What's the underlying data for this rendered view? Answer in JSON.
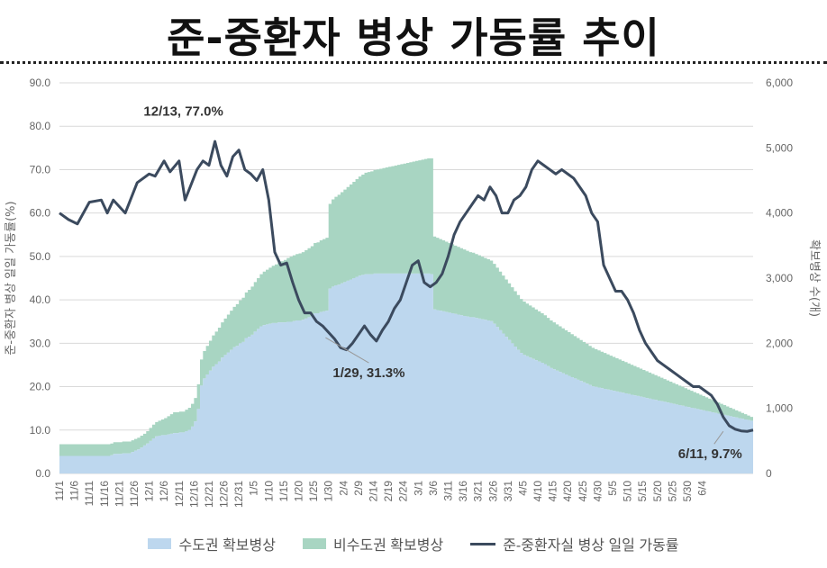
{
  "title": "준-중환자 병상 가동률 추이",
  "colors": {
    "metro": "#bdd7ee",
    "nonmetro": "#a8d5c2",
    "line": "#3b4a5e",
    "axis": "#666666",
    "grid": "#d9d9d9"
  },
  "chart_data": {
    "type": "area+line",
    "y_left": {
      "label": "준-중환자 병상 일일 가동률(%)",
      "min": 0,
      "max": 90,
      "ticks": [
        "0.0",
        "10.0",
        "20.0",
        "30.0",
        "40.0",
        "50.0",
        "60.0",
        "70.0",
        "80.0",
        "90.0"
      ]
    },
    "y_right": {
      "label": "확보병상 수(개)",
      "min": 0,
      "max": 6000,
      "ticks": [
        "0",
        "1,000",
        "2,000",
        "3,000",
        "4,000",
        "5,000",
        "6,000"
      ]
    },
    "x_ticks": [
      "11/1",
      "11/6",
      "11/11",
      "11/16",
      "11/21",
      "11/26",
      "12/1",
      "12/6",
      "12/11",
      "12/16",
      "12/21",
      "12/26",
      "12/31",
      "1/5",
      "1/10",
      "1/15",
      "1/20",
      "1/25",
      "1/30",
      "2/4",
      "2/9",
      "2/14",
      "2/19",
      "2/24",
      "3/1",
      "3/6",
      "3/11",
      "3/16",
      "3/21",
      "3/26",
      "3/31",
      "4/5",
      "4/10",
      "4/15",
      "4/20",
      "4/25",
      "4/30",
      "5/5",
      "5/10",
      "5/15",
      "5/20",
      "5/25",
      "5/30",
      "6/4"
    ],
    "series": [
      {
        "name": "수도권 확보병상",
        "type": "area",
        "unit": "beds",
        "values": [
          270,
          270,
          270,
          270,
          270,
          270,
          270,
          270,
          270,
          270,
          270,
          270,
          270,
          270,
          270,
          270,
          270,
          280,
          300,
          300,
          300,
          310,
          310,
          310,
          330,
          350,
          370,
          400,
          430,
          460,
          500,
          540,
          570,
          580,
          590,
          590,
          600,
          610,
          620,
          620,
          630,
          630,
          650,
          670,
          720,
          800,
          990,
          1350,
          1460,
          1520,
          1580,
          1640,
          1680,
          1720,
          1780,
          1820,
          1860,
          1900,
          1940,
          1960,
          2000,
          2020,
          2080,
          2100,
          2130,
          2180,
          2220,
          2260,
          2280,
          2290,
          2300,
          2310,
          2310,
          2320,
          2320,
          2320,
          2330,
          2330,
          2340,
          2350,
          2350,
          2360,
          2380,
          2400,
          2420,
          2460,
          2460,
          2480,
          2490,
          2500,
          2840,
          2870,
          2890,
          2900,
          2920,
          2940,
          2960,
          2980,
          3000,
          3020,
          3040,
          3050,
          3060,
          3060,
          3060,
          3070,
          3070,
          3070,
          3070,
          3070,
          3070,
          3070,
          3070,
          3070,
          3070,
          3070,
          3070,
          3070,
          3070,
          3070,
          3070,
          3070,
          3070,
          3070,
          3060,
          2520,
          2510,
          2500,
          2490,
          2480,
          2470,
          2460,
          2450,
          2440,
          2430,
          2420,
          2410,
          2400,
          2400,
          2390,
          2380,
          2370,
          2360,
          2350,
          2340,
          2300,
          2250,
          2200,
          2150,
          2100,
          2050,
          2000,
          1950,
          1900,
          1850,
          1820,
          1800,
          1780,
          1760,
          1740,
          1720,
          1700,
          1680,
          1650,
          1620,
          1600,
          1580,
          1560,
          1540,
          1520,
          1500,
          1480,
          1460,
          1440,
          1420,
          1400,
          1380,
          1360,
          1340,
          1330,
          1320,
          1310,
          1300,
          1290,
          1280,
          1270,
          1260,
          1250,
          1240,
          1230,
          1220,
          1210,
          1200,
          1190,
          1180,
          1170,
          1160,
          1150,
          1140,
          1130,
          1120,
          1110,
          1100,
          1090,
          1080,
          1070,
          1060,
          1050,
          1040,
          1030,
          1020,
          1010,
          1000,
          990,
          980,
          970,
          960,
          950,
          940,
          930,
          920,
          910,
          900,
          890,
          880,
          870,
          860,
          850,
          840,
          830,
          820,
          810,
          800,
          790,
          780,
          770,
          760,
          750,
          740,
          730,
          720,
          710,
          700,
          690,
          680,
          670,
          660,
          650,
          640,
          630,
          620,
          610,
          600,
          590,
          580,
          570,
          560,
          550,
          540,
          530,
          520,
          510,
          500,
          490,
          480,
          470,
          460,
          450,
          440,
          430,
          420,
          410,
          400,
          390,
          380,
          370,
          360,
          350,
          340,
          330,
          320,
          310,
          300,
          290,
          280,
          270,
          260,
          250,
          240,
          230,
          220,
          210,
          200,
          190,
          180,
          170,
          160,
          150,
          140,
          130,
          120,
          110,
          100,
          90,
          80,
          70,
          60,
          50,
          40,
          30,
          20,
          10,
          0
        ]
      },
      {
        "name": "비수도권 확보병상",
        "type": "area",
        "unit": "beds",
        "values": [
          180,
          180,
          180,
          180,
          180,
          180,
          180,
          180,
          180,
          180,
          180,
          180,
          180,
          180,
          180,
          180,
          180,
          180,
          180,
          180,
          180,
          180,
          180,
          180,
          180,
          180,
          180,
          180,
          180,
          190,
          200,
          210,
          220,
          230,
          240,
          260,
          280,
          300,
          320,
          320,
          320,
          320,
          330,
          340,
          350,
          360,
          380,
          400,
          420,
          440,
          460,
          480,
          500,
          520,
          540,
          560,
          580,
          600,
          620,
          640,
          660,
          680,
          700,
          720,
          740,
          760,
          780,
          800,
          820,
          840,
          860,
          880,
          900,
          920,
          940,
          960,
          980,
          1000,
          1010,
          1020,
          1030,
          1040,
          1050,
          1060,
          1070,
          1080,
          1090,
          1100,
          1110,
          1120,
          1300,
          1340,
          1360,
          1380,
          1400,
          1420,
          1440,
          1460,
          1480,
          1500,
          1520,
          1540,
          1560,
          1570,
          1580,
          1590,
          1600,
          1610,
          1620,
          1630,
          1640,
          1650,
          1660,
          1670,
          1680,
          1690,
          1700,
          1710,
          1720,
          1730,
          1740,
          1750,
          1760,
          1770,
          1780,
          1120,
          1110,
          1100,
          1090,
          1080,
          1070,
          1060,
          1050,
          1040,
          1030,
          1020,
          1010,
          1000,
          990,
          980,
          970,
          960,
          950,
          940,
          930,
          920,
          910,
          900,
          890,
          880,
          870,
          860,
          850,
          840,
          830,
          820,
          810,
          800,
          790,
          780,
          770,
          760,
          750,
          740,
          730,
          720,
          710,
          700,
          690,
          680,
          670,
          660,
          650,
          640,
          630,
          620,
          610,
          600,
          590,
          580,
          570,
          560,
          550,
          540,
          530,
          520,
          510,
          500,
          490,
          480,
          470,
          460,
          450,
          440,
          430,
          420,
          410,
          400,
          390,
          380,
          370,
          360,
          350,
          340,
          330,
          320,
          310,
          300,
          290,
          280,
          270,
          260,
          250,
          240,
          230,
          220,
          210,
          200,
          190,
          180,
          170,
          160,
          150,
          140,
          130,
          120,
          110,
          100,
          90,
          80,
          70,
          60,
          50,
          40,
          30,
          20,
          10,
          0,
          0,
          0,
          0,
          0,
          0,
          0,
          0,
          0,
          0,
          0,
          0,
          0,
          0,
          0,
          0,
          0,
          0,
          0,
          0,
          0,
          0,
          0,
          0,
          0,
          0,
          0,
          0,
          0,
          0,
          0,
          0,
          0,
          0,
          0,
          0,
          0,
          0,
          0,
          0,
          0,
          0,
          0,
          0,
          0,
          0,
          0,
          0,
          0,
          0,
          0,
          0,
          0,
          0,
          0,
          0,
          0,
          0,
          0,
          0,
          0,
          0,
          0,
          0,
          0,
          0,
          0,
          0,
          0,
          0,
          0,
          0,
          0,
          0,
          0,
          0,
          0,
          0,
          0
        ]
      },
      {
        "name": "준-중환자실 병상 일일 가동률",
        "type": "line",
        "unit": "%",
        "keypoints": [
          [
            0,
            60
          ],
          [
            3,
            58.5
          ],
          [
            6,
            57.5
          ],
          [
            10,
            62.5
          ],
          [
            14,
            63
          ],
          [
            16,
            60
          ],
          [
            18,
            63
          ],
          [
            22,
            60
          ],
          [
            26,
            67
          ],
          [
            30,
            69
          ],
          [
            32,
            68.5
          ],
          [
            35,
            72
          ],
          [
            37,
            69.5
          ],
          [
            40,
            72
          ],
          [
            42,
            63
          ],
          [
            44,
            66.5
          ],
          [
            46,
            70
          ],
          [
            48,
            72
          ],
          [
            50,
            71
          ],
          [
            52,
            76.5
          ],
          [
            54,
            71
          ],
          [
            56,
            68.5
          ],
          [
            58,
            73
          ],
          [
            60,
            74.5
          ],
          [
            62,
            70
          ],
          [
            64,
            69
          ],
          [
            66,
            67.5
          ],
          [
            68,
            70
          ],
          [
            70,
            63
          ],
          [
            72,
            51
          ],
          [
            74,
            48
          ],
          [
            76,
            48.5
          ],
          [
            78,
            44
          ],
          [
            80,
            40
          ],
          [
            82,
            37
          ],
          [
            84,
            37
          ],
          [
            86,
            35
          ],
          [
            88,
            34
          ],
          [
            90,
            32.5
          ],
          [
            92,
            31
          ],
          [
            94,
            29
          ],
          [
            96,
            28.5
          ],
          [
            98,
            30
          ],
          [
            100,
            32
          ],
          [
            102,
            34
          ],
          [
            104,
            32
          ],
          [
            106,
            30.5
          ],
          [
            108,
            33
          ],
          [
            110,
            35
          ],
          [
            112,
            38
          ],
          [
            114,
            40
          ],
          [
            116,
            44
          ],
          [
            118,
            48
          ],
          [
            120,
            49
          ],
          [
            122,
            44
          ],
          [
            124,
            43
          ],
          [
            126,
            44
          ],
          [
            128,
            46
          ],
          [
            130,
            50
          ],
          [
            132,
            55
          ],
          [
            134,
            58
          ],
          [
            136,
            60
          ],
          [
            138,
            62
          ],
          [
            140,
            64
          ],
          [
            142,
            63
          ],
          [
            144,
            66
          ],
          [
            146,
            64
          ],
          [
            148,
            60
          ],
          [
            150,
            60
          ],
          [
            152,
            63
          ],
          [
            154,
            64
          ],
          [
            156,
            66
          ],
          [
            158,
            70
          ],
          [
            160,
            72
          ],
          [
            162,
            71
          ],
          [
            164,
            70
          ],
          [
            166,
            69
          ],
          [
            168,
            70
          ],
          [
            170,
            69
          ],
          [
            172,
            68
          ],
          [
            174,
            66
          ],
          [
            176,
            64
          ],
          [
            178,
            60
          ],
          [
            180,
            58
          ],
          [
            182,
            48
          ],
          [
            184,
            45
          ],
          [
            186,
            42
          ],
          [
            188,
            42
          ],
          [
            190,
            40
          ],
          [
            192,
            37
          ],
          [
            194,
            33
          ],
          [
            196,
            30
          ],
          [
            198,
            28
          ],
          [
            200,
            26
          ],
          [
            202,
            25
          ],
          [
            204,
            24
          ],
          [
            206,
            23
          ],
          [
            208,
            22
          ],
          [
            210,
            21
          ],
          [
            212,
            20
          ],
          [
            214,
            20
          ],
          [
            216,
            19
          ],
          [
            218,
            18
          ],
          [
            220,
            16
          ],
          [
            222,
            13
          ],
          [
            224,
            11
          ],
          [
            226,
            10.2
          ],
          [
            228,
            9.8
          ],
          [
            230,
            9.7
          ],
          [
            232,
            10
          ]
        ]
      }
    ],
    "annotations": [
      {
        "text": "12/13, 77.0%",
        "x_index": 42,
        "y": 77.0
      },
      {
        "text": "1/29, 31.3%",
        "x_index": 89,
        "y": 31.3
      },
      {
        "text": "6/11, 9.7%",
        "x_index": 222,
        "y": 9.7
      }
    ]
  },
  "legend": [
    {
      "label": "수도권 확보병상",
      "kind": "area",
      "color": "#bdd7ee"
    },
    {
      "label": "비수도권 확보병상",
      "kind": "area",
      "color": "#a8d5c2"
    },
    {
      "label": "준-중환자실 병상 일일 가동률",
      "kind": "line",
      "color": "#3b4a5e"
    }
  ]
}
